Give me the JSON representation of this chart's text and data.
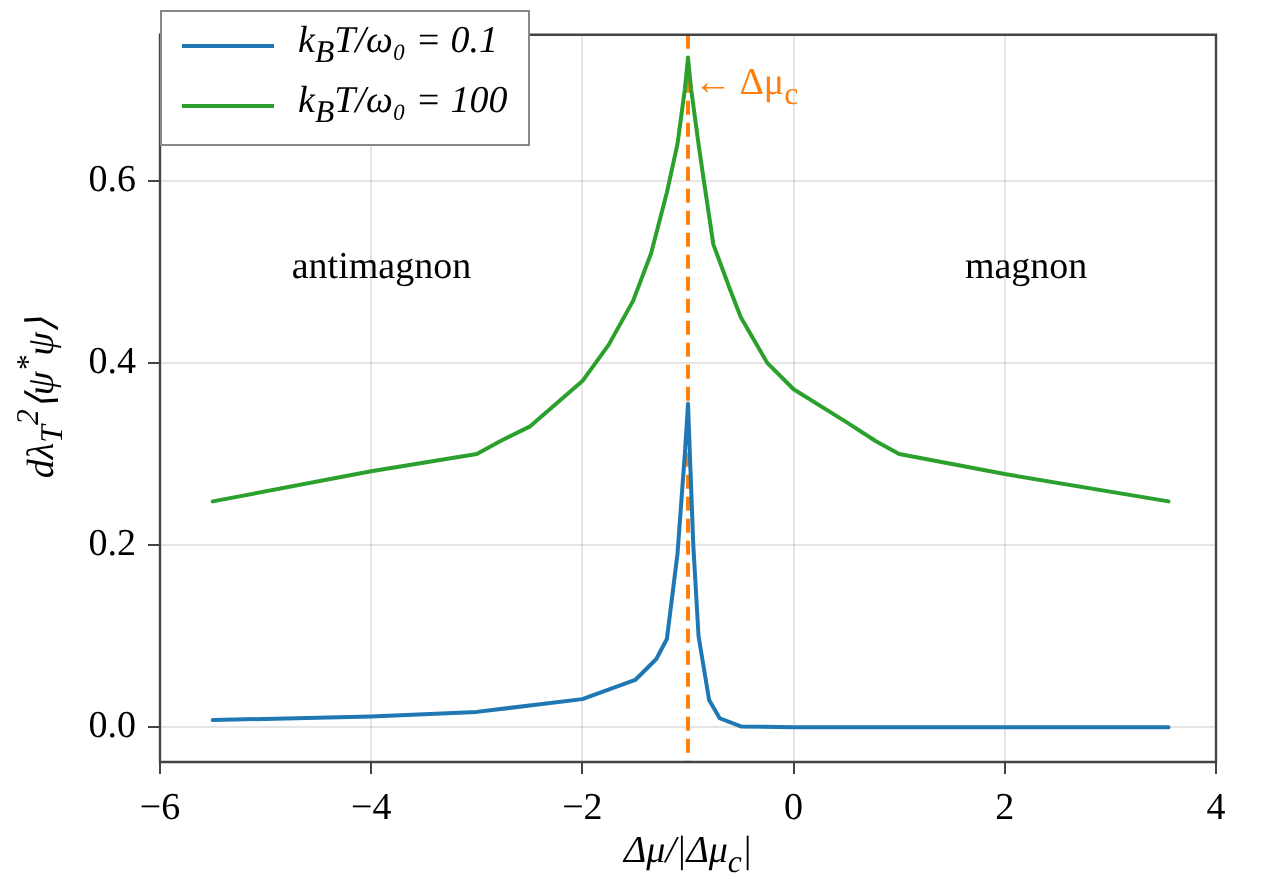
{
  "chart_data": {
    "type": "line",
    "xlabel": "Δμ/|Δμ$_{c}$|",
    "ylabel": "dλ$_{T}$$^{2}$⟨ψ$^{*}$ψ⟩",
    "xlim": [
      -6,
      4
    ],
    "ylim": [
      -0.038,
      0.76
    ],
    "xticks": [
      {
        "value": -6,
        "label": "−6"
      },
      {
        "value": -4,
        "label": "−4"
      },
      {
        "value": -2,
        "label": "−2"
      },
      {
        "value": 0,
        "label": "0"
      },
      {
        "value": 2,
        "label": "2"
      },
      {
        "value": 4,
        "label": "4"
      }
    ],
    "yticks": [
      {
        "value": 0,
        "label": "0.0"
      },
      {
        "value": 0.2,
        "label": "0.2"
      },
      {
        "value": 0.4,
        "label": "0.4"
      },
      {
        "value": 0.6,
        "label": "0.6"
      }
    ],
    "grid": true,
    "legend": "top left",
    "marker": "none",
    "line_style": "solid",
    "ref_lines": [
      {
        "axis": "x",
        "value": -1,
        "label": "← Δμ$_{c}$",
        "color": "#ff7f0e",
        "line_style": "dashed"
      }
    ],
    "annotations": [
      "antimagnon",
      "magnon"
    ],
    "series": [
      {
        "name": "k$_{B}$T/ω₀ = 0.1",
        "color": "#1f77b4",
        "x": [
          -5.5,
          -4,
          -3,
          -2,
          -1.5,
          -1.3,
          -1.2,
          -1.1,
          -1.03,
          -1,
          -0.95,
          -0.9,
          -0.8,
          -0.7,
          -0.5,
          0,
          1,
          2,
          3.55
        ],
        "values": [
          0.008,
          0.012,
          0.017,
          0.031,
          0.052,
          0.075,
          0.097,
          0.19,
          0.3,
          0.355,
          0.2,
          0.1,
          0.03,
          0.01,
          0.001,
          0,
          0,
          0,
          0
        ]
      },
      {
        "name": "k$_{B}$T/ω₀ = 100",
        "color": "#2ca02c",
        "x": [
          -5.5,
          -4,
          -3,
          -2.78,
          -2.5,
          -2,
          -1.75,
          -1.52,
          -1.35,
          -1.2,
          -1.1,
          -1.03,
          -1,
          -0.97,
          -0.9,
          -0.85,
          -0.76,
          -0.6,
          -0.5,
          -0.25,
          0,
          0.5,
          0.78,
          1,
          2,
          3.55
        ],
        "values": [
          0.248,
          0.281,
          0.3,
          0.314,
          0.33,
          0.38,
          0.42,
          0.468,
          0.52,
          0.587,
          0.64,
          0.7,
          0.735,
          0.7,
          0.64,
          0.6,
          0.53,
          0.48,
          0.45,
          0.4,
          0.371,
          0.335,
          0.314,
          0.3,
          0.278,
          0.248
        ]
      }
    ]
  }
}
